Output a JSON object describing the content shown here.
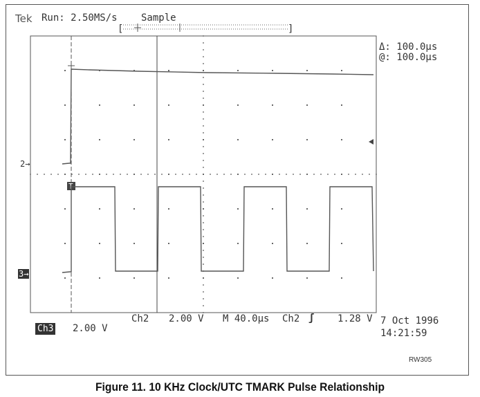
{
  "header": {
    "brand": "Tek",
    "status": "Run: 2.50MS/s",
    "mode": "Sample",
    "bracket_left": "[",
    "bracket_right": "]"
  },
  "cursor_readout": {
    "delta": "Δ: 100.0µs",
    "at": "@: 100.0µs"
  },
  "markers": {
    "ch2": "2→",
    "ch3": "3→",
    "trigger": "T"
  },
  "bottom": {
    "ch2_label": "Ch2",
    "ch2_scale": "2.00 V",
    "timebase": "M 40.0µs",
    "trigger_source": "Ch2",
    "trigger_slope": "ʃ",
    "trigger_level": "1.28 V",
    "ch3_label": "Ch3",
    "ch3_scale": "2.00 V"
  },
  "datetime": {
    "date": "7 Oct 1996",
    "time": "14:21:59"
  },
  "figure_id": "RW305",
  "caption": "Figure 11. 10 KHz Clock/UTC TMARK Pulse Relationship",
  "colors": {
    "trace": "#555555",
    "grid": "#777777",
    "text": "#333333"
  }
}
